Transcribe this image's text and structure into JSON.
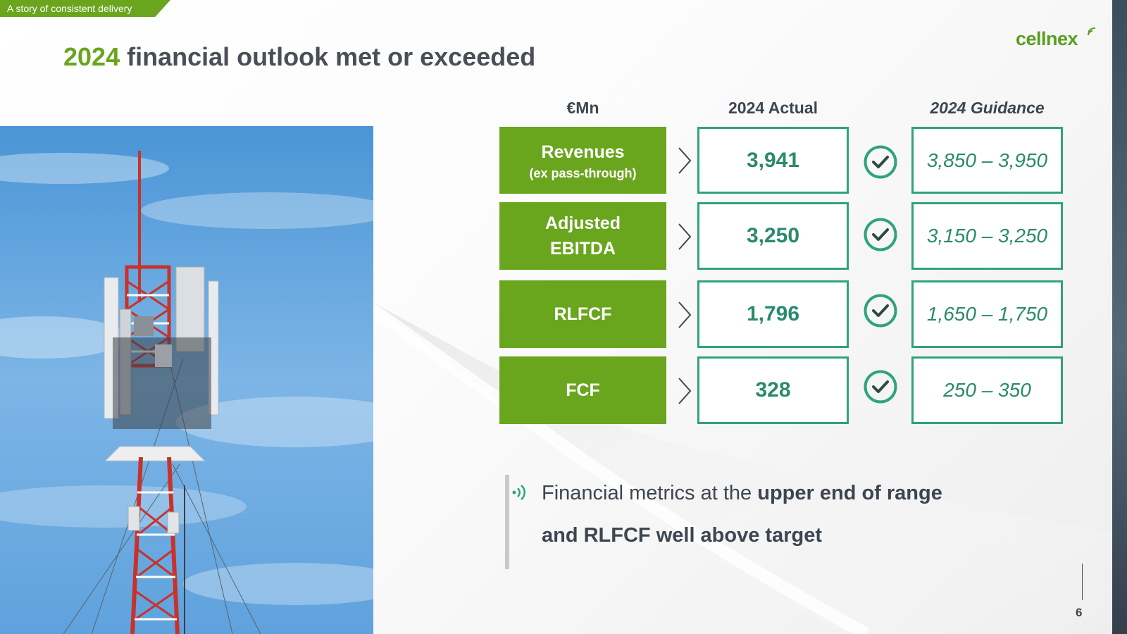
{
  "section_tag": "A story of consistent delivery",
  "title": {
    "year": "2024",
    "rest": " financial outlook met or exceeded"
  },
  "logo": {
    "text": "cellnex"
  },
  "table": {
    "headers": {
      "unit": "€Mn",
      "actual": "2024 Actual",
      "guidance": "2024 Guidance"
    },
    "rows": [
      {
        "metric_line1": "Revenues",
        "metric_line2": "(ex pass-through)",
        "actual": "3,941",
        "guidance": "3,850 – 3,950"
      },
      {
        "metric_line1": "Adjusted",
        "metric_line2": "EBITDA",
        "actual": "3,250",
        "guidance": "3,150 – 3,250"
      },
      {
        "metric_line1": "RLFCF",
        "metric_line2": "",
        "actual": "1,796",
        "guidance": "1,650 – 1,750"
      },
      {
        "metric_line1": "FCF",
        "metric_line2": "",
        "actual": "328",
        "guidance": "250 – 350"
      }
    ]
  },
  "note": {
    "line1_plain": "Financial metrics at the ",
    "line1_bold": "upper end of range",
    "line2_bold": "and RLFCF well above target"
  },
  "icons": {
    "chevron": "chevron-right-icon",
    "check": "check-circle-icon",
    "signal": "signal-waves-icon"
  },
  "colors": {
    "brand_green": "#6aa51e",
    "teal": "#2ea37e",
    "text_dark": "#4a4f57"
  },
  "page_number": "6"
}
